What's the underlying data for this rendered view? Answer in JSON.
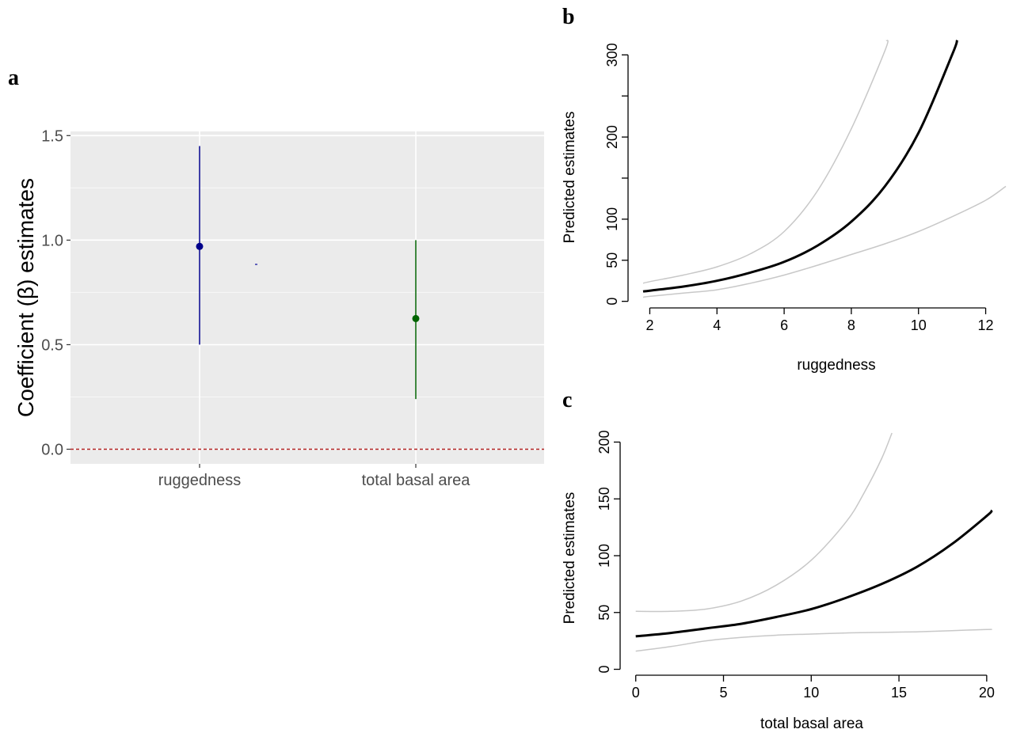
{
  "panel_letters": [
    "a",
    "b",
    "c"
  ],
  "chart_data": [
    {
      "panel": "a",
      "type": "scatter",
      "ylabel": "Coefficient  (β) estimates",
      "xlabel": "",
      "categories": [
        "ruggedness",
        "total basal area"
      ],
      "series": [
        {
          "category": "ruggedness",
          "estimate": 0.97,
          "lower": 0.5,
          "upper": 1.45,
          "color": "#00008b"
        },
        {
          "category": "total basal area",
          "estimate": 0.625,
          "lower": 0.24,
          "upper": 1.0,
          "color": "#006400"
        }
      ],
      "yticks": [
        "0.0",
        "0.5",
        "1.0",
        "1.5"
      ],
      "ytick_values": [
        0,
        0.5,
        1.0,
        1.5
      ],
      "ylim": [
        -0.07,
        1.52
      ],
      "reference_line": {
        "y": 0,
        "color": "#b22222",
        "style": "dashed"
      },
      "background": "#ebebeb",
      "grid": true
    },
    {
      "panel": "b",
      "type": "line",
      "xlabel": "ruggedness",
      "ylabel": "Predicted estimates",
      "xticks": [
        "2",
        "4",
        "6",
        "8",
        "10",
        "12"
      ],
      "xtick_values": [
        2,
        4,
        6,
        8,
        10,
        12
      ],
      "yticks": [
        "0",
        "50",
        "100",
        "200",
        "300"
      ],
      "ytick_values": [
        0,
        50,
        100,
        200,
        300
      ],
      "yminor_ticks": [
        150,
        250
      ],
      "xlim": [
        1.4,
        12.6
      ],
      "ylim": [
        -9,
        309
      ],
      "series": [
        {
          "role": "fit",
          "color": "#000000",
          "x": [
            1.8,
            2,
            3,
            4,
            5,
            6,
            7,
            8,
            9,
            10,
            11,
            11.15
          ],
          "y": [
            12,
            13,
            18,
            25,
            35,
            48,
            68,
            97,
            140,
            205,
            300,
            318
          ]
        },
        {
          "role": "upper",
          "color": "#c8c8c8",
          "x": [
            1.8,
            2,
            3,
            4,
            5,
            6,
            7,
            8,
            9,
            9.05
          ],
          "y": [
            22,
            24,
            32,
            42,
            58,
            85,
            135,
            210,
            305,
            318
          ]
        },
        {
          "role": "lower",
          "color": "#c8c8c8",
          "x": [
            1.8,
            2,
            3,
            4,
            5,
            6,
            7,
            8,
            9,
            10,
            11,
            12,
            12.6
          ],
          "y": [
            5,
            6,
            10,
            14,
            22,
            32,
            44,
            57,
            70,
            85,
            103,
            123,
            140
          ]
        }
      ]
    },
    {
      "panel": "c",
      "type": "line",
      "xlabel": "total basal area",
      "ylabel": "Predicted estimates",
      "xticks": [
        "0",
        "5",
        "10",
        "15",
        "20"
      ],
      "xtick_values": [
        0,
        5,
        10,
        15,
        20
      ],
      "yticks": [
        "0",
        "50",
        "100",
        "150",
        "200"
      ],
      "ytick_values": [
        0,
        50,
        100,
        150,
        200
      ],
      "xlim": [
        -0.8,
        21
      ],
      "ylim": [
        -8,
        208
      ],
      "series": [
        {
          "role": "fit",
          "color": "#000000",
          "x": [
            0,
            2,
            4,
            6,
            8,
            10,
            12,
            14,
            16,
            18,
            20,
            20.3
          ],
          "y": [
            29,
            32,
            36,
            40,
            46,
            53,
            63,
            75,
            90,
            110,
            135,
            140
          ]
        },
        {
          "role": "upper",
          "color": "#c8c8c8",
          "x": [
            0,
            2,
            4,
            6,
            8,
            10,
            12,
            13,
            14,
            14.6
          ],
          "y": [
            51,
            51,
            53,
            60,
            74,
            96,
            130,
            155,
            185,
            208
          ]
        },
        {
          "role": "lower",
          "color": "#c8c8c8",
          "x": [
            0,
            2,
            4,
            6,
            8,
            10,
            12,
            14,
            16,
            18,
            20,
            20.3
          ],
          "y": [
            16,
            20,
            25,
            28,
            30,
            31,
            32,
            32.5,
            33,
            34,
            35,
            35
          ]
        }
      ]
    }
  ]
}
